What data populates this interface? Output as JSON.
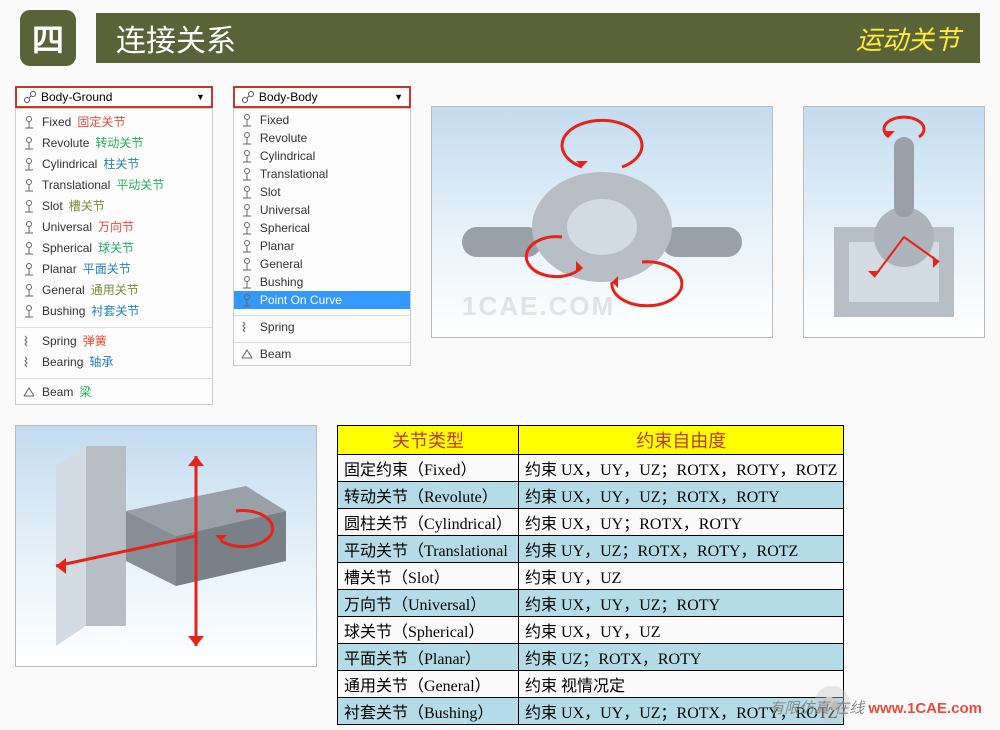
{
  "header": {
    "badge": "四",
    "title": "连接关系",
    "subtitle": "运动关节"
  },
  "menu1": {
    "header": "Body-Ground",
    "items": [
      {
        "label": "Fixed",
        "ann": "固定关节",
        "cls": "ann-red"
      },
      {
        "label": "Revolute",
        "ann": "转动关节",
        "cls": "ann-green"
      },
      {
        "label": "Cylindrical",
        "ann": "柱关节",
        "cls": "ann-blue"
      },
      {
        "label": "Translational",
        "ann": "平动关节",
        "cls": "ann-green"
      },
      {
        "label": "Slot",
        "ann": "槽关节",
        "cls": "ann-olive"
      },
      {
        "label": "Universal",
        "ann": "万向节",
        "cls": "ann-red"
      },
      {
        "label": "Spherical",
        "ann": "球关节",
        "cls": "ann-green"
      },
      {
        "label": "Planar",
        "ann": "平面关节",
        "cls": "ann-blue"
      },
      {
        "label": "General",
        "ann": "通用关节",
        "cls": "ann-olive"
      },
      {
        "label": "Bushing",
        "ann": "衬套关节",
        "cls": "ann-blue"
      }
    ],
    "group2": [
      {
        "label": "Spring",
        "ann": "弹簧",
        "cls": "ann-red"
      },
      {
        "label": "Bearing",
        "ann": "轴承",
        "cls": "ann-blue"
      }
    ],
    "group3": [
      {
        "label": "Beam",
        "ann": "梁",
        "cls": "ann-green"
      }
    ]
  },
  "menu2": {
    "header": "Body-Body",
    "items": [
      {
        "label": "Fixed"
      },
      {
        "label": "Revolute"
      },
      {
        "label": "Cylindrical"
      },
      {
        "label": "Translational"
      },
      {
        "label": "Slot"
      },
      {
        "label": "Universal"
      },
      {
        "label": "Spherical"
      },
      {
        "label": "Planar"
      },
      {
        "label": "General"
      },
      {
        "label": "Bushing"
      },
      {
        "label": "Point On Curve",
        "sel": true
      }
    ],
    "group2": [
      {
        "label": "Spring"
      }
    ],
    "group3": [
      {
        "label": "Beam"
      }
    ]
  },
  "table": {
    "headers": [
      "关节类型",
      "约束自由度"
    ],
    "rows": [
      {
        "t": "固定约束（Fixed）",
        "c": "约束  UX，UY，UZ；ROTX，ROTY，ROTZ",
        "alt": false
      },
      {
        "t": "转动关节（Revolute）",
        "c": "约束  UX，UY，UZ；ROTX，ROTY",
        "alt": true
      },
      {
        "t": "圆柱关节（Cylindrical）",
        "c": "约束  UX，UY；ROTX，ROTY",
        "alt": false
      },
      {
        "t": "平动关节（Translational",
        "c": "约束  UY，UZ；ROTX，ROTY，ROTZ",
        "alt": true
      },
      {
        "t": "槽关节（Slot）",
        "c": "约束  UY，UZ",
        "alt": false
      },
      {
        "t": "万向节（Universal）",
        "c": "约束  UX，UY，UZ；ROTY",
        "alt": true
      },
      {
        "t": "球关节（Spherical）",
        "c": "约束  UX，UY，UZ",
        "alt": false
      },
      {
        "t": "平面关节（Planar）",
        "c": "约束  UZ；ROTX，ROTY",
        "alt": true
      },
      {
        "t": "通用关节（General）",
        "c": "约束  视情况定",
        "alt": false
      },
      {
        "t": "衬套关节（Bushing）",
        "c": "约束  UX，UY，UZ；ROTX，ROTY，ROTZ",
        "alt": true
      }
    ]
  },
  "watermark": "1CAE.COM",
  "footer": {
    "pre": "有限仿真·在线 ",
    "site": "www.1CAE.com"
  }
}
